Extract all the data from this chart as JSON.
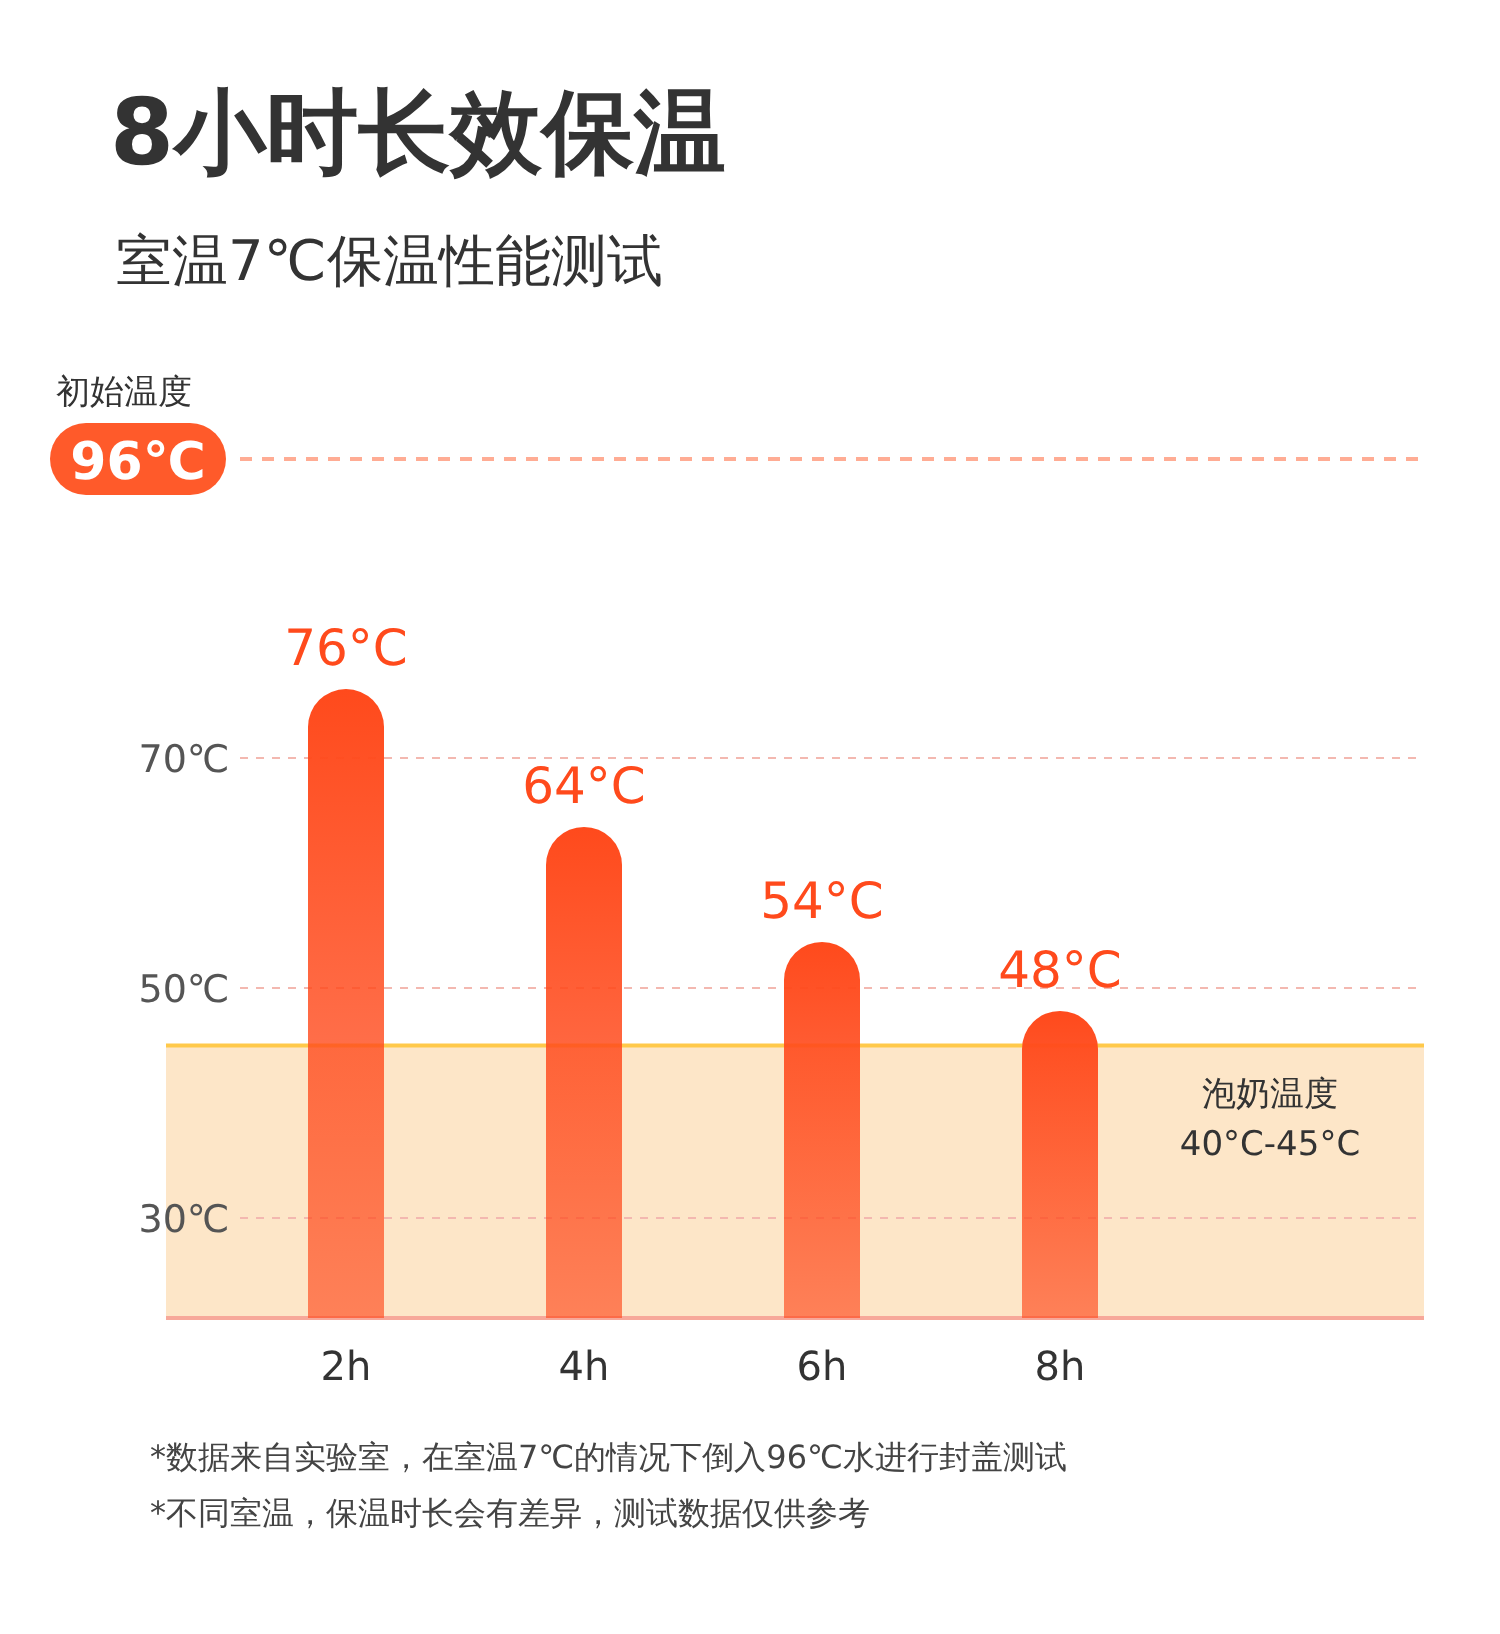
{
  "chart_data": {
    "type": "bar",
    "title": "8小时长效保温",
    "subtitle": "室温7℃保温性能测试",
    "categories": [
      "2h",
      "4h",
      "6h",
      "8h"
    ],
    "values": [
      76,
      64,
      54,
      48
    ],
    "value_labels": [
      "76°C",
      "64°C",
      "54°C",
      "48°C"
    ],
    "color": "#ff4a1c",
    "ylim": [
      21.3,
      96
    ],
    "yticks": [
      {
        "value": 30,
        "label": "30℃"
      },
      {
        "value": 50,
        "label": "50℃"
      },
      {
        "value": 70,
        "label": "70℃"
      }
    ],
    "grid": "y",
    "ref_lines": [
      {
        "axis": "y",
        "value": 96,
        "label": "初始温度 96℃",
        "color": "#ff5a2a",
        "line_style": "dashed"
      },
      {
        "axis": "y",
        "value": 45,
        "color": "#ffc94a",
        "line_style": "solid"
      }
    ],
    "bands": [
      {
        "axis": "y",
        "from": 21.3,
        "to": 45,
        "label": "泡奶温度 40°C-45°C",
        "color": "#fde6c8"
      }
    ],
    "annotations": [
      "*数据来自实验室，在室温7℃的情况下倒入96℃水进行封盖测试",
      "*不同室温，保温时长会有差异，测试数据仅供参考"
    ]
  }
}
